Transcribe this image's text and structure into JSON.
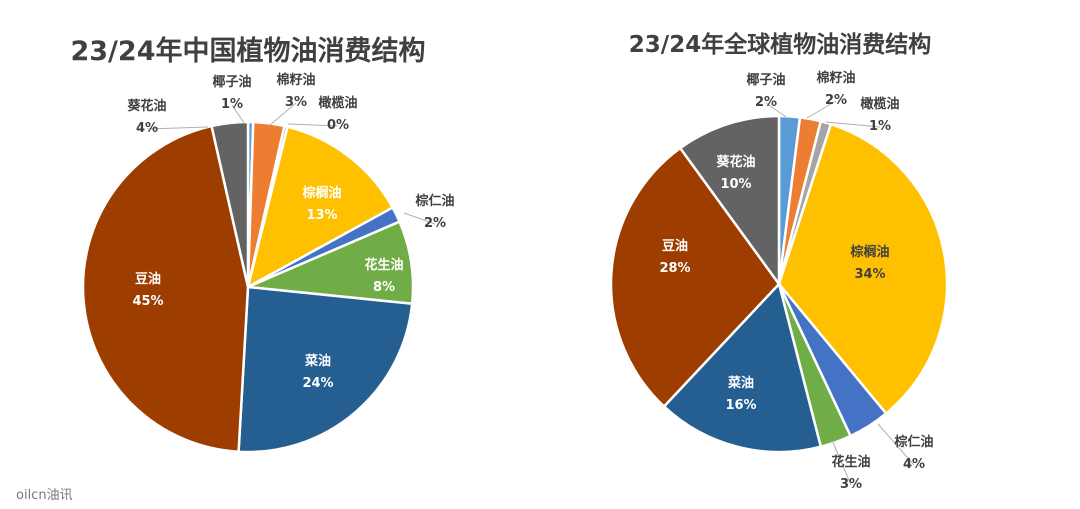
{
  "watermark": "oilcn油讯",
  "chart_data": [
    {
      "type": "pie",
      "title": "23/24年中国植物油消费结构",
      "slices": [
        {
          "name": "椰子油",
          "value": 0.5,
          "display": "1%",
          "color": "#5B9BD5"
        },
        {
          "name": "棉籽油",
          "value": 3,
          "display": "3%",
          "color": "#ED7D31"
        },
        {
          "name": "橄榄油",
          "value": 0.3,
          "display": "0%",
          "color": "#A5A5A5"
        },
        {
          "name": "棕榈油",
          "value": 13,
          "display": "13%",
          "color": "#FFC000"
        },
        {
          "name": "棕仁油",
          "value": 1.5,
          "display": "2%",
          "color": "#4472C4"
        },
        {
          "name": "花生油",
          "value": 8,
          "display": "8%",
          "color": "#70AD47"
        },
        {
          "name": "菜油",
          "value": 24,
          "display": "24%",
          "color": "#255E91"
        },
        {
          "name": "豆油",
          "value": 45,
          "display": "45%",
          "color": "#9E3D00"
        },
        {
          "name": "葵花油",
          "value": 3.5,
          "display": "4%",
          "color": "#636363"
        }
      ]
    },
    {
      "type": "pie",
      "title": "23/24年全球植物油消费结构",
      "slices": [
        {
          "name": "椰子油",
          "value": 2,
          "display": "2%",
          "color": "#5B9BD5"
        },
        {
          "name": "棉籽油",
          "value": 2,
          "display": "2%",
          "color": "#ED7D31"
        },
        {
          "name": "橄榄油",
          "value": 1,
          "display": "1%",
          "color": "#A5A5A5"
        },
        {
          "name": "棕榈油",
          "value": 34,
          "display": "34%",
          "color": "#FFC000"
        },
        {
          "name": "棕仁油",
          "value": 4,
          "display": "4%",
          "color": "#4472C4"
        },
        {
          "name": "花生油",
          "value": 3,
          "display": "3%",
          "color": "#70AD47"
        },
        {
          "name": "菜油",
          "value": 16,
          "display": "16%",
          "color": "#255E91"
        },
        {
          "name": "豆油",
          "value": 28,
          "display": "28%",
          "color": "#9E3D00"
        },
        {
          "name": "葵花油",
          "value": 10,
          "display": "10%",
          "color": "#636363"
        }
      ]
    }
  ]
}
